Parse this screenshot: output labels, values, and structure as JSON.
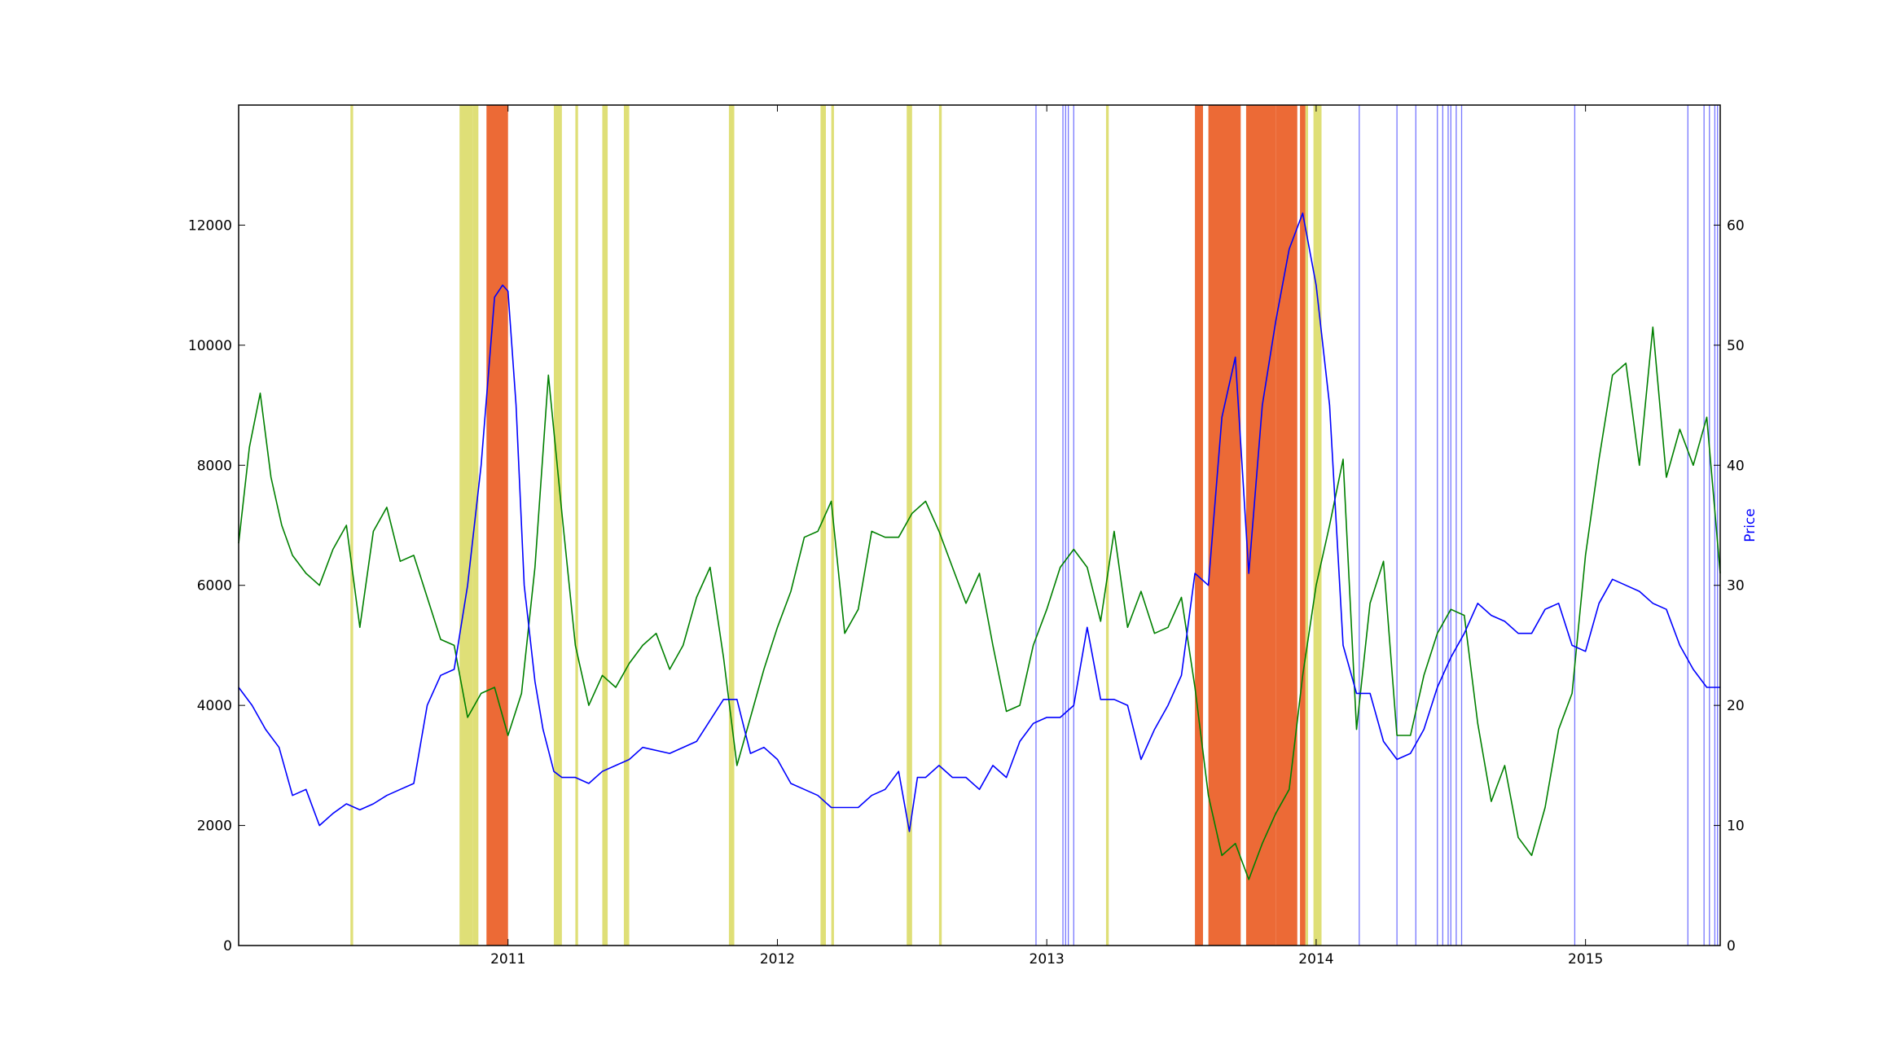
{
  "chart_data": {
    "type": "line",
    "title": "",
    "xlabel": "",
    "ylabel_left": "",
    "ylabel_right": "Price",
    "xlim": [
      2010.0,
      2015.5
    ],
    "ylim_left": [
      0,
      14000
    ],
    "ylim_right": [
      0,
      70
    ],
    "x_ticks": [
      2011,
      2012,
      2013,
      2014,
      2015
    ],
    "x_tick_labels": [
      "2011",
      "2012",
      "2013",
      "2014",
      "2015"
    ],
    "y_left_ticks": [
      0,
      2000,
      4000,
      6000,
      8000,
      10000,
      12000
    ],
    "y_left_tick_labels": [
      "0",
      "2000",
      "4000",
      "6000",
      "8000",
      "10000",
      "12000"
    ],
    "y_right_ticks": [
      0,
      10,
      20,
      30,
      40,
      50,
      60
    ],
    "y_right_tick_labels": [
      "0",
      "10",
      "20",
      "30",
      "40",
      "50",
      "60"
    ],
    "grid": false,
    "legend": "none",
    "colors": {
      "series_left": "#008000",
      "series_right": "#0000ff",
      "band_yellow": "#d4d44a",
      "band_orange": "#ec6a36",
      "band_blue_line": "#7777ff",
      "right_axis_label": "#0000ff"
    },
    "series": [
      {
        "axis": "left",
        "x": [
          2010.0,
          2010.04,
          2010.08,
          2010.12,
          2010.16,
          2010.2,
          2010.25,
          2010.3,
          2010.35,
          2010.4,
          2010.45,
          2010.5,
          2010.55,
          2010.6,
          2010.65,
          2010.7,
          2010.75,
          2010.8,
          2010.85,
          2010.9,
          2010.95,
          2011.0,
          2011.05,
          2011.1,
          2011.15,
          2011.2,
          2011.25,
          2011.3,
          2011.35,
          2011.4,
          2011.45,
          2011.5,
          2011.55,
          2011.6,
          2011.65,
          2011.7,
          2011.75,
          2011.8,
          2011.85,
          2011.9,
          2011.95,
          2012.0,
          2012.05,
          2012.1,
          2012.15,
          2012.2,
          2012.25,
          2012.3,
          2012.35,
          2012.4,
          2012.45,
          2012.5,
          2012.55,
          2012.6,
          2012.65,
          2012.7,
          2012.75,
          2012.8,
          2012.85,
          2012.9,
          2012.95,
          2013.0,
          2013.05,
          2013.1,
          2013.15,
          2013.2,
          2013.25,
          2013.3,
          2013.35,
          2013.4,
          2013.45,
          2013.5,
          2013.55,
          2013.6,
          2013.65,
          2013.7,
          2013.75,
          2013.8,
          2013.85,
          2013.9,
          2013.95,
          2014.0,
          2014.05,
          2014.1,
          2014.15,
          2014.2,
          2014.25,
          2014.3,
          2014.35,
          2014.4,
          2014.45,
          2014.5,
          2014.55,
          2014.6,
          2014.65,
          2014.7,
          2014.75,
          2014.8,
          2014.85,
          2014.9,
          2014.95,
          2015.0,
          2015.05,
          2015.1,
          2015.15,
          2015.2,
          2015.25,
          2015.3,
          2015.35,
          2015.4,
          2015.45,
          2015.5
        ],
        "values": [
          6700,
          8300,
          9200,
          7800,
          7000,
          6500,
          6200,
          6000,
          6600,
          7000,
          5300,
          6900,
          7300,
          6400,
          6500,
          5800,
          5100,
          5000,
          3800,
          4200,
          4300,
          3500,
          4200,
          6300,
          9500,
          7200,
          5000,
          4000,
          4500,
          4300,
          4700,
          5000,
          5200,
          4600,
          5000,
          5800,
          6300,
          4800,
          3000,
          3800,
          4600,
          5300,
          5900,
          6800,
          6900,
          7400,
          5200,
          5600,
          6900,
          6800,
          6800,
          7200,
          7400,
          6900,
          6300,
          5700,
          6200,
          5000,
          3900,
          4000,
          5000,
          5600,
          6300,
          6600,
          6300,
          5400,
          6900,
          5300,
          5900,
          5200,
          5300,
          5800,
          4300,
          2500,
          1500,
          1700,
          1100,
          1700,
          2200,
          2600,
          4500,
          6000,
          7000,
          8100,
          3600,
          5700,
          6400,
          3500,
          3500,
          4500,
          5200,
          5600,
          5500,
          3700,
          2400,
          3000,
          1800,
          1500,
          2300,
          3600,
          4200,
          6500,
          8100,
          9500,
          9700,
          8000,
          10300,
          7800,
          8600,
          8000,
          8800,
          6200
        ],
        "name": ""
      },
      {
        "axis": "right",
        "x": [
          2010.0,
          2010.05,
          2010.1,
          2010.15,
          2010.2,
          2010.25,
          2010.3,
          2010.35,
          2010.4,
          2010.45,
          2010.5,
          2010.55,
          2010.6,
          2010.65,
          2010.7,
          2010.75,
          2010.8,
          2010.85,
          2010.9,
          2010.95,
          2010.98,
          2011.0,
          2011.03,
          2011.06,
          2011.1,
          2011.13,
          2011.17,
          2011.2,
          2011.25,
          2011.3,
          2011.35,
          2011.4,
          2011.45,
          2011.5,
          2011.6,
          2011.7,
          2011.8,
          2011.85,
          2011.9,
          2011.95,
          2012.0,
          2012.05,
          2012.1,
          2012.15,
          2012.2,
          2012.25,
          2012.3,
          2012.35,
          2012.4,
          2012.45,
          2012.49,
          2012.52,
          2012.55,
          2012.6,
          2012.65,
          2012.7,
          2012.75,
          2012.8,
          2012.85,
          2012.9,
          2012.95,
          2013.0,
          2013.05,
          2013.1,
          2013.15,
          2013.2,
          2013.25,
          2013.3,
          2013.35,
          2013.4,
          2013.45,
          2013.5,
          2013.55,
          2013.6,
          2013.65,
          2013.7,
          2013.75,
          2013.8,
          2013.85,
          2013.9,
          2013.95,
          2014.0,
          2014.05,
          2014.1,
          2014.15,
          2014.2,
          2014.25,
          2014.3,
          2014.35,
          2014.4,
          2014.45,
          2014.5,
          2014.55,
          2014.6,
          2014.65,
          2014.7,
          2014.75,
          2014.8,
          2014.85,
          2014.9,
          2014.95,
          2015.0,
          2015.05,
          2015.1,
          2015.15,
          2015.2,
          2015.25,
          2015.3,
          2015.35,
          2015.4,
          2015.45,
          2015.5
        ],
        "values": [
          21.5,
          20.0,
          18.0,
          16.5,
          12.5,
          13.0,
          10.0,
          11.0,
          11.8,
          11.3,
          11.8,
          12.5,
          13.0,
          13.5,
          20.0,
          22.5,
          23.0,
          30.0,
          40.0,
          54.0,
          55.0,
          54.5,
          45.0,
          30.0,
          22.0,
          18.0,
          14.5,
          14.0,
          14.0,
          13.5,
          14.5,
          15.0,
          15.5,
          16.5,
          16.0,
          17.0,
          20.5,
          20.5,
          16.0,
          16.5,
          15.5,
          13.5,
          13.0,
          12.5,
          11.5,
          11.5,
          11.5,
          12.5,
          13.0,
          14.5,
          9.5,
          14.0,
          14.0,
          15.0,
          14.0,
          14.0,
          13.0,
          15.0,
          14.0,
          17.0,
          18.5,
          19.0,
          19.0,
          20.0,
          26.5,
          20.5,
          20.5,
          20.0,
          15.5,
          18.0,
          20.0,
          22.5,
          31.0,
          30.0,
          44.0,
          49.0,
          31.0,
          45.0,
          52.0,
          58.0,
          61.0,
          55.0,
          45.0,
          25.0,
          21.0,
          21.0,
          17.0,
          15.5,
          16.0,
          18.0,
          21.5,
          24.0,
          26.0,
          28.5,
          27.5,
          27.0,
          26.0,
          26.0,
          28.0,
          28.5,
          25.0,
          24.5,
          28.5,
          30.5,
          30.0,
          29.5,
          28.5,
          28.0,
          25.0,
          23.0,
          21.5,
          21.5
        ],
        "name": ""
      }
    ],
    "bands_yellow": [
      [
        2010.415,
        2010.425
      ],
      [
        2010.82,
        2010.87
      ],
      [
        2010.87,
        2010.89
      ],
      [
        2011.17,
        2011.2
      ],
      [
        2011.25,
        2011.26
      ],
      [
        2011.35,
        2011.37
      ],
      [
        2011.43,
        2011.45
      ],
      [
        2011.82,
        2011.84
      ],
      [
        2012.16,
        2012.18
      ],
      [
        2012.2,
        2012.21
      ],
      [
        2012.48,
        2012.5
      ],
      [
        2012.6,
        2012.61
      ],
      [
        2013.22,
        2013.23
      ],
      [
        2013.96,
        2013.97
      ],
      [
        2013.99,
        2014.02
      ]
    ],
    "bands_orange": [
      [
        2010.92,
        2011.0
      ],
      [
        2013.55,
        2013.58
      ],
      [
        2013.6,
        2013.72
      ],
      [
        2013.74,
        2013.85
      ],
      [
        2013.85,
        2013.93
      ],
      [
        2013.94,
        2013.96
      ]
    ],
    "blue_lines": [
      2012.96,
      2013.06,
      2013.07,
      2013.08,
      2013.1,
      2014.16,
      2014.3,
      2014.37,
      2014.45,
      2014.47,
      2014.49,
      2014.5,
      2014.52,
      2014.54,
      2014.96,
      2015.38,
      2015.44,
      2015.46,
      2015.48,
      2015.49
    ]
  }
}
